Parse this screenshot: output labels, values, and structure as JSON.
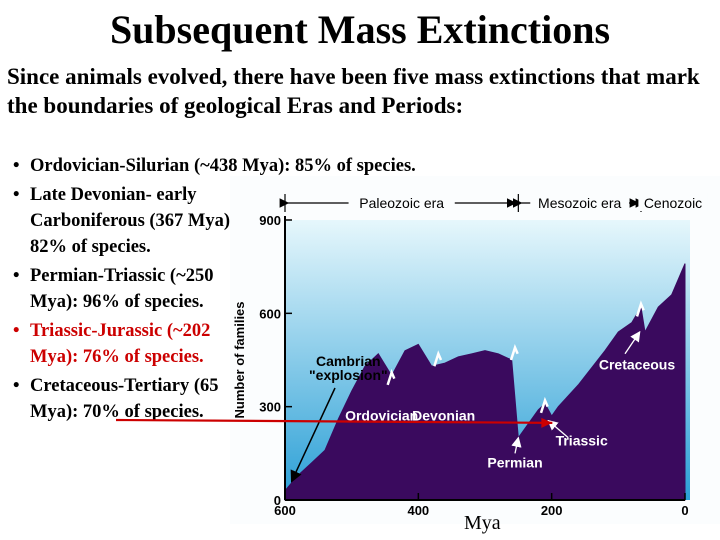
{
  "title": "Subsequent Mass Extinctions",
  "intro": "Since animals evolved, there have been five mass extinctions that mark the boundaries of geological Eras and Periods:",
  "bullet_glyph": "•",
  "bullets": [
    {
      "text": "Ordovician-Silurian (~438 Mya): 85% of species."
    },
    {
      "text": "Late Devonian- early Carboniferous (367 Mya): 82% of species."
    },
    {
      "text": "Permian-Triassic (~250 Mya): 96% of species."
    },
    {
      "text": "Triassic-Jurassic (~202 Mya): 76% of species.",
      "color": "#cc0000"
    },
    {
      "text": "Cretaceous-Tertiary (65 Mya): 70% of species."
    }
  ],
  "figure": {
    "eras": [
      "Paleozoic era",
      "Mesozoic era",
      "Cenozoic"
    ],
    "ylabel": "Number of families",
    "xlabel": "Mya",
    "yticks": [
      "0",
      "300",
      "600",
      "900"
    ],
    "xticks": [
      "600",
      "400",
      "200",
      "0"
    ],
    "annotations": {
      "cambrian_line1": "Cambrian",
      "cambrian_line2": "\"explosion\"",
      "ordovician": "Ordovician",
      "devonian": "Devonian",
      "permian": "Permian",
      "triassic": "Triassic",
      "cretaceous": "Cretaceous"
    },
    "colors": {
      "background_top": "#e6f7fc",
      "background_bottom": "#2a9fd6",
      "fill": "#3a0a5e",
      "arrow": "#cc0000"
    }
  },
  "chart_data": {
    "type": "area",
    "xlabel": "Mya",
    "ylabel": "Number of families",
    "xlim": [
      600,
      0
    ],
    "ylim": [
      0,
      900
    ],
    "x": [
      600,
      580,
      560,
      540,
      520,
      500,
      480,
      460,
      440,
      420,
      400,
      380,
      360,
      340,
      320,
      300,
      280,
      260,
      250,
      240,
      220,
      210,
      200,
      190,
      160,
      120,
      100,
      80,
      66,
      60,
      40,
      20,
      0
    ],
    "values": [
      30,
      80,
      120,
      160,
      260,
      350,
      430,
      470,
      400,
      480,
      500,
      430,
      440,
      460,
      470,
      480,
      470,
      450,
      200,
      230,
      290,
      310,
      270,
      300,
      370,
      480,
      540,
      570,
      620,
      540,
      620,
      660,
      760
    ]
  }
}
